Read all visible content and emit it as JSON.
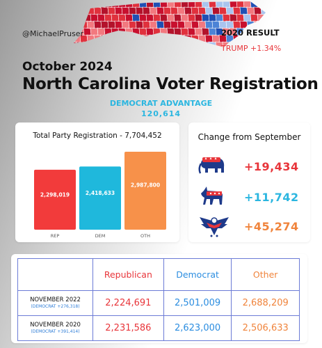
{
  "header": {
    "handle": "@MichaelPruser",
    "result_label": "2020 RESULT",
    "result_value": "TRUMP +1.34%",
    "date": "October 2024",
    "title": "North Carolina Voter Registration",
    "advantage_label": "DEMOCRAT ADVANTAGE",
    "advantage_value": "120,614"
  },
  "colors": {
    "rep": "#f23b3b",
    "dem": "#1fb8dc",
    "oth": "#f7914a"
  },
  "chart_data": {
    "type": "bar",
    "title": "Total Party Registration - 7,704,452",
    "categories": [
      "REP",
      "DEM",
      "OTH"
    ],
    "values": [
      2298019,
      2418633,
      2987800
    ],
    "value_labels": [
      "2,298,019",
      "2,418,633",
      "2,987,800"
    ],
    "ylim": [
      0,
      3200000
    ],
    "xlabel": "",
    "ylabel": "",
    "grid": false
  },
  "change": {
    "title": "Change from September",
    "rows": [
      {
        "icon": "republican-elephant-icon",
        "value": "+19,434",
        "color": "#e8353a"
      },
      {
        "icon": "democrat-donkey-icon",
        "value": "+11,742",
        "color": "#2bb6e0"
      },
      {
        "icon": "unaffiliated-eagle-icon",
        "value": "+45,274",
        "color": "#f0843c"
      }
    ]
  },
  "table": {
    "headers": [
      "",
      "Republican",
      "Democrat",
      "Other"
    ],
    "rows": [
      {
        "label": "NOVEMBER 2022",
        "sub": "(DEMOCRAT +276,318)",
        "rep": "2,224,691",
        "dem": "2,501,009",
        "oth": "2,688,209"
      },
      {
        "label": "NOVEMBER 2020",
        "sub": "(DEMOCRAT +391,414)",
        "rep": "2,231,586",
        "dem": "2,623,000",
        "oth": "2,506,633"
      }
    ]
  }
}
